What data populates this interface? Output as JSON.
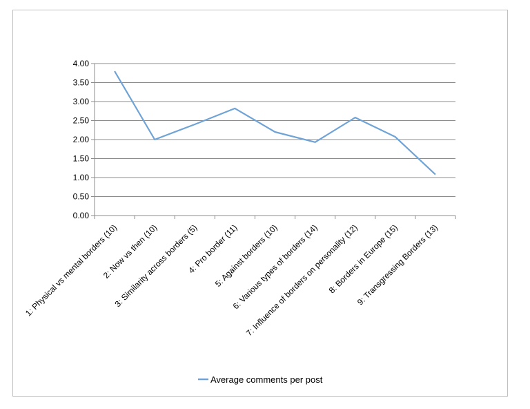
{
  "chart_data": {
    "type": "line",
    "title": "",
    "xlabel": "",
    "ylabel": "",
    "ylim": [
      0,
      4
    ],
    "yticks": [
      "0.00",
      "0.50",
      "1.00",
      "1.50",
      "2.00",
      "2.50",
      "3.00",
      "3.50",
      "4.00"
    ],
    "grid": true,
    "legend": "bottom",
    "categories": [
      "1: Physical vs mental borders (10)",
      "2: Now vs then (10)",
      "3: Similarity across borders (5)",
      "4: Pro border (11)",
      "5: Against borders (10)",
      "6: Various types of borders (14)",
      "7: Influence of borders on personality (12)",
      "8: Borders in Europe (15)",
      "9: Transgressing Borders (13)"
    ],
    "series": [
      {
        "name": "Average comments per post",
        "color": "#6fa3d6",
        "values": [
          3.8,
          2.0,
          2.4,
          2.82,
          2.2,
          1.93,
          2.58,
          2.07,
          1.08
        ]
      }
    ]
  }
}
